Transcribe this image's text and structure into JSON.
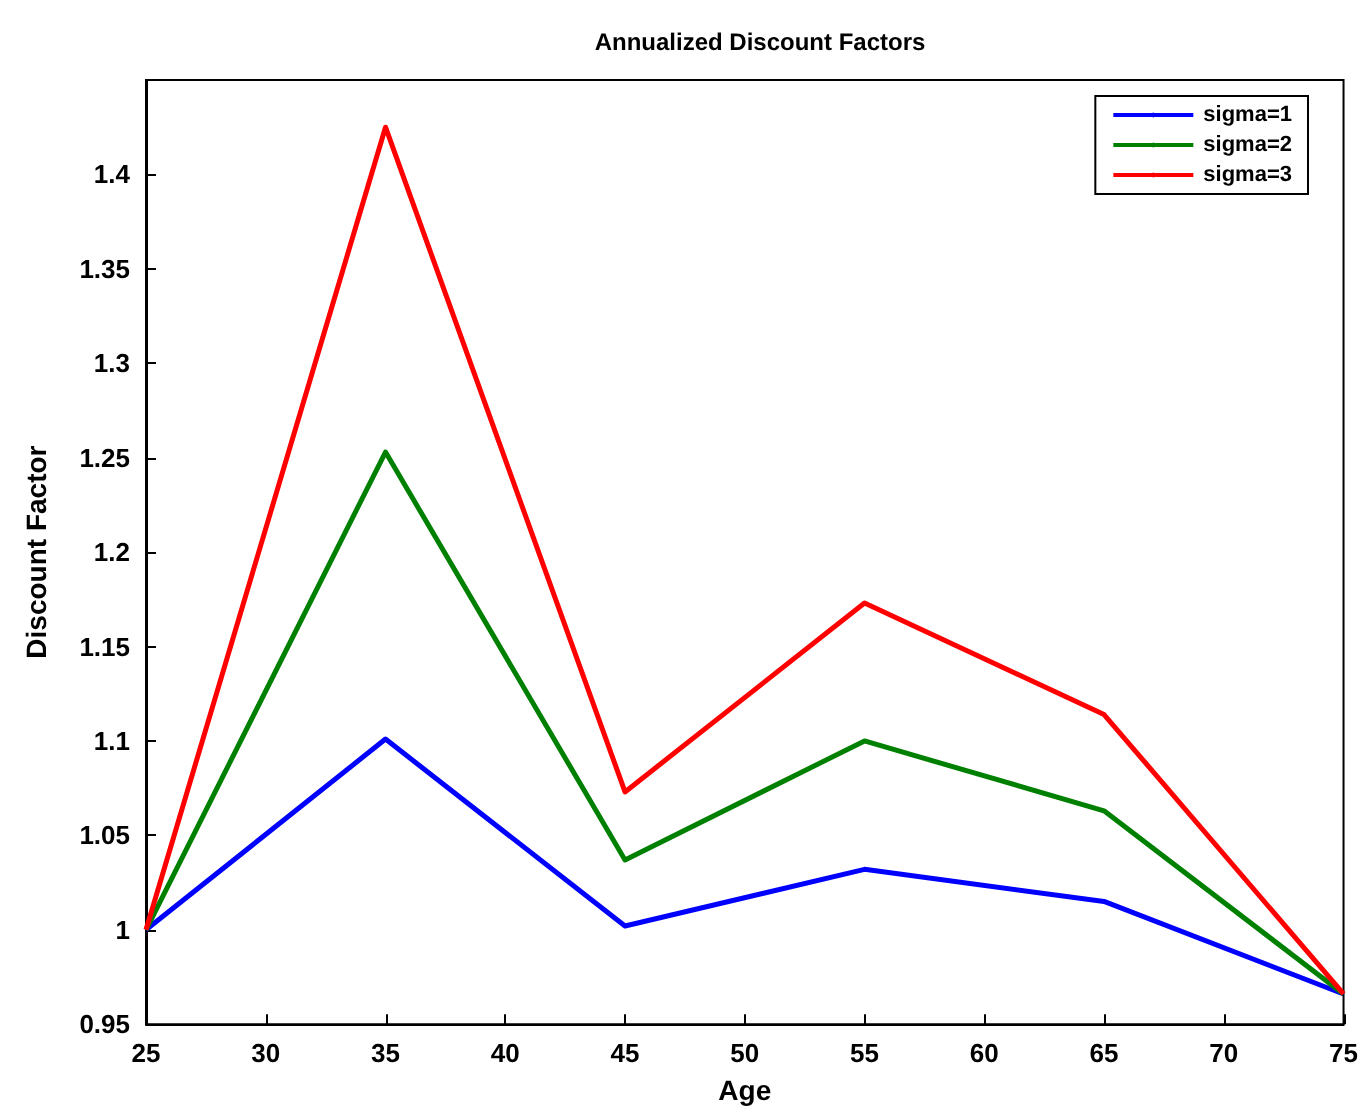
{
  "chart_data": {
    "type": "line",
    "title": "Annualized Discount Factors",
    "xlabel": "Age",
    "ylabel": "Discount Factor",
    "x": [
      25,
      35,
      45,
      55,
      65,
      75
    ],
    "series": [
      {
        "name": "sigma=1",
        "color": "#0000ff",
        "values": [
          1.0,
          1.101,
          1.002,
          1.032,
          1.015,
          0.966
        ]
      },
      {
        "name": "sigma=2",
        "color": "#008000",
        "values": [
          1.0,
          1.253,
          1.037,
          1.1,
          1.063,
          0.966
        ]
      },
      {
        "name": "sigma=3",
        "color": "#ff0000",
        "values": [
          1.0,
          1.425,
          1.073,
          1.173,
          1.114,
          0.966
        ]
      }
    ],
    "xlim": [
      25,
      75
    ],
    "xticks": [
      25,
      30,
      35,
      40,
      45,
      50,
      55,
      60,
      65,
      70,
      75
    ],
    "ylim": [
      0.95,
      1.45
    ],
    "yticks": [
      0.95,
      1,
      1.05,
      1.1,
      1.15,
      1.2,
      1.25,
      1.3,
      1.35,
      1.4
    ],
    "grid": false,
    "legend": "top right",
    "marker": "none",
    "line_style": "solid"
  }
}
